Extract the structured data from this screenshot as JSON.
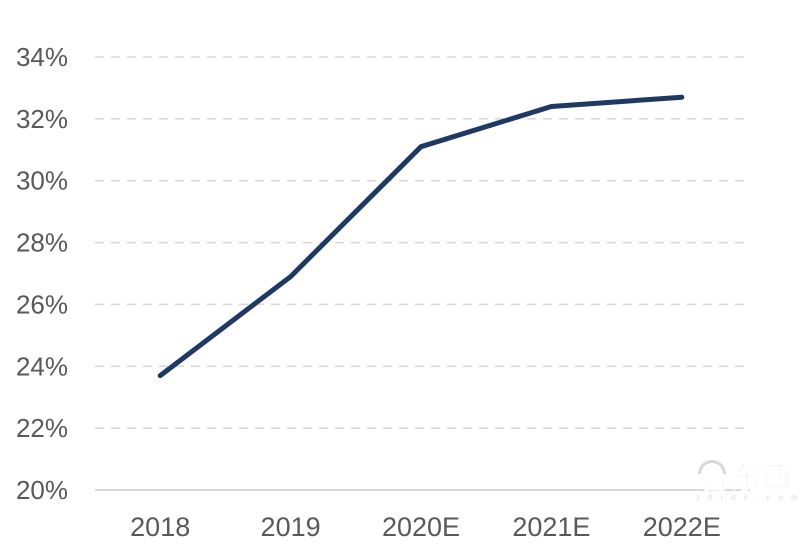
{
  "chart_data": {
    "type": "line",
    "title": "",
    "xlabel": "",
    "ylabel": "",
    "categories": [
      "2018",
      "2019",
      "2020E",
      "2021E",
      "2022E"
    ],
    "values": [
      23.7,
      26.9,
      31.1,
      32.4,
      32.7
    ],
    "series_name": "",
    "ylim": [
      20,
      34
    ],
    "y_tick_step": 2,
    "y_tick_labels": [
      "20%",
      "22%",
      "24%",
      "26%",
      "28%",
      "30%",
      "32%",
      "34%"
    ],
    "legend": "none",
    "grid": "horizontal-dashed",
    "colors": {
      "line": "#1f3864",
      "labels": "#595959",
      "gridline": "#d9d9d9",
      "axis": "#d9d9d9",
      "background": "#ffffff"
    }
  },
  "watermark": {
    "text": "智东西",
    "subtext": "z h i d x . c o m"
  }
}
